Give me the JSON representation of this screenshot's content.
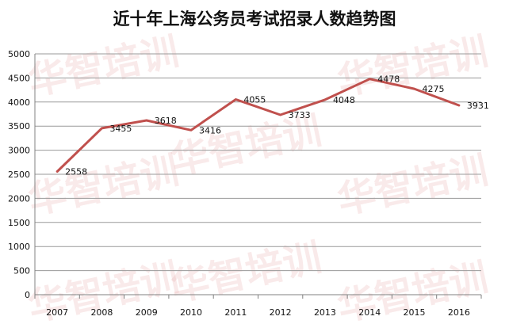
{
  "chart_data": {
    "type": "line",
    "title": "近十年上海公务员考试招录人数趋势图",
    "categories": [
      "2007",
      "2008",
      "2009",
      "2010",
      "2011",
      "2012",
      "2013",
      "2014",
      "2015",
      "2016"
    ],
    "series": [
      {
        "values": [
          2558,
          3455,
          3618,
          3416,
          4055,
          3733,
          4048,
          4478,
          4275,
          3931
        ]
      }
    ],
    "ylim": [
      0,
      5000
    ],
    "yticks": [
      0,
      500,
      1000,
      1500,
      2000,
      2500,
      3000,
      3500,
      4000,
      4500,
      5000
    ],
    "grid": true,
    "legend": "none",
    "colors": {
      "line": "#c0504d",
      "grid": "#9a9a9a",
      "axis": "#808080"
    }
  },
  "watermark": {
    "text": "华智培训",
    "color": "#e7a3a3"
  }
}
